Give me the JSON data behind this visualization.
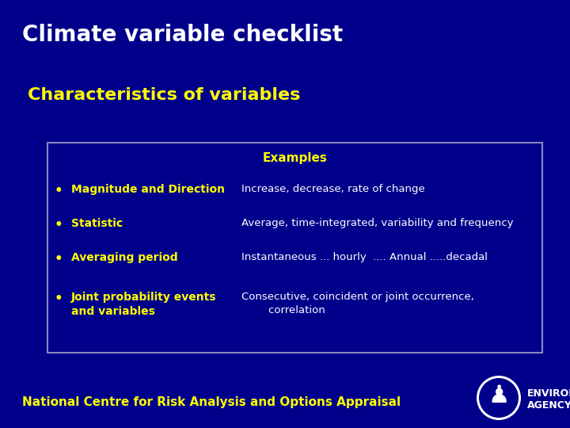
{
  "title": "Climate variable checklist",
  "subtitle": "Characteristics of variables",
  "background_color": "#00008B",
  "title_color": "#FFFFFF",
  "subtitle_color": "#FFFF00",
  "table_header": "Examples",
  "table_header_color": "#FFFF00",
  "table_border_color": "#8888BB",
  "bullet_color": "#FFFF00",
  "bullet_label_color": "#FFFF00",
  "example_text_color": "#FFFFFF",
  "footer_text": "National Centre for Risk Analysis and Options Appraisal",
  "footer_color": "#FFFF00",
  "rows": [
    {
      "label": "Magnitude and Direction",
      "example": "Increase, decrease, rate of change"
    },
    {
      "label": "Statistic",
      "example": "Average, time-integrated, variability and frequency"
    },
    {
      "label": "Averaging period",
      "example": "Instantaneous ... hourly  .... Annual .....decadal"
    },
    {
      "label": "Joint probability events\nand variables",
      "example": "Consecutive, coincident or joint occurrence,\n        correlation"
    }
  ],
  "agency_text": "ENVIRONMENT\nAGENCY"
}
